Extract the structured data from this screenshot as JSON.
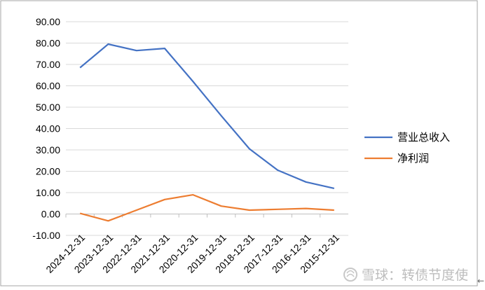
{
  "chart_data": {
    "type": "line",
    "categories": [
      "2024-12-31",
      "2023-12-31",
      "2022-12-31",
      "2021-12-31",
      "2020-12-31",
      "2019-12-31",
      "2018-12-31",
      "2017-12-31",
      "2016-12-31",
      "2015-12-31"
    ],
    "series": [
      {
        "name": "营业总收入",
        "color": "#4472c4",
        "values": [
          68.5,
          79.5,
          76.5,
          77.5,
          62.0,
          46.0,
          30.5,
          20.5,
          15.0,
          12.0
        ]
      },
      {
        "name": "净利润",
        "color": "#ed7d31",
        "values": [
          0.3,
          -3.2,
          1.8,
          6.8,
          9.0,
          3.7,
          1.8,
          2.2,
          2.6,
          1.8
        ]
      }
    ],
    "ylim": [
      -10,
      90
    ],
    "yticks": [
      "-10.00",
      "0.00",
      "10.00",
      "20.00",
      "30.00",
      "40.00",
      "50.00",
      "60.00",
      "70.00",
      "80.00",
      "90.00"
    ],
    "grid": true,
    "legend_position": "right"
  },
  "watermark": {
    "text": "雪球：转债节度使"
  },
  "colors": {
    "grid": "#d9d9d9",
    "frame": "#a6a6a6"
  }
}
